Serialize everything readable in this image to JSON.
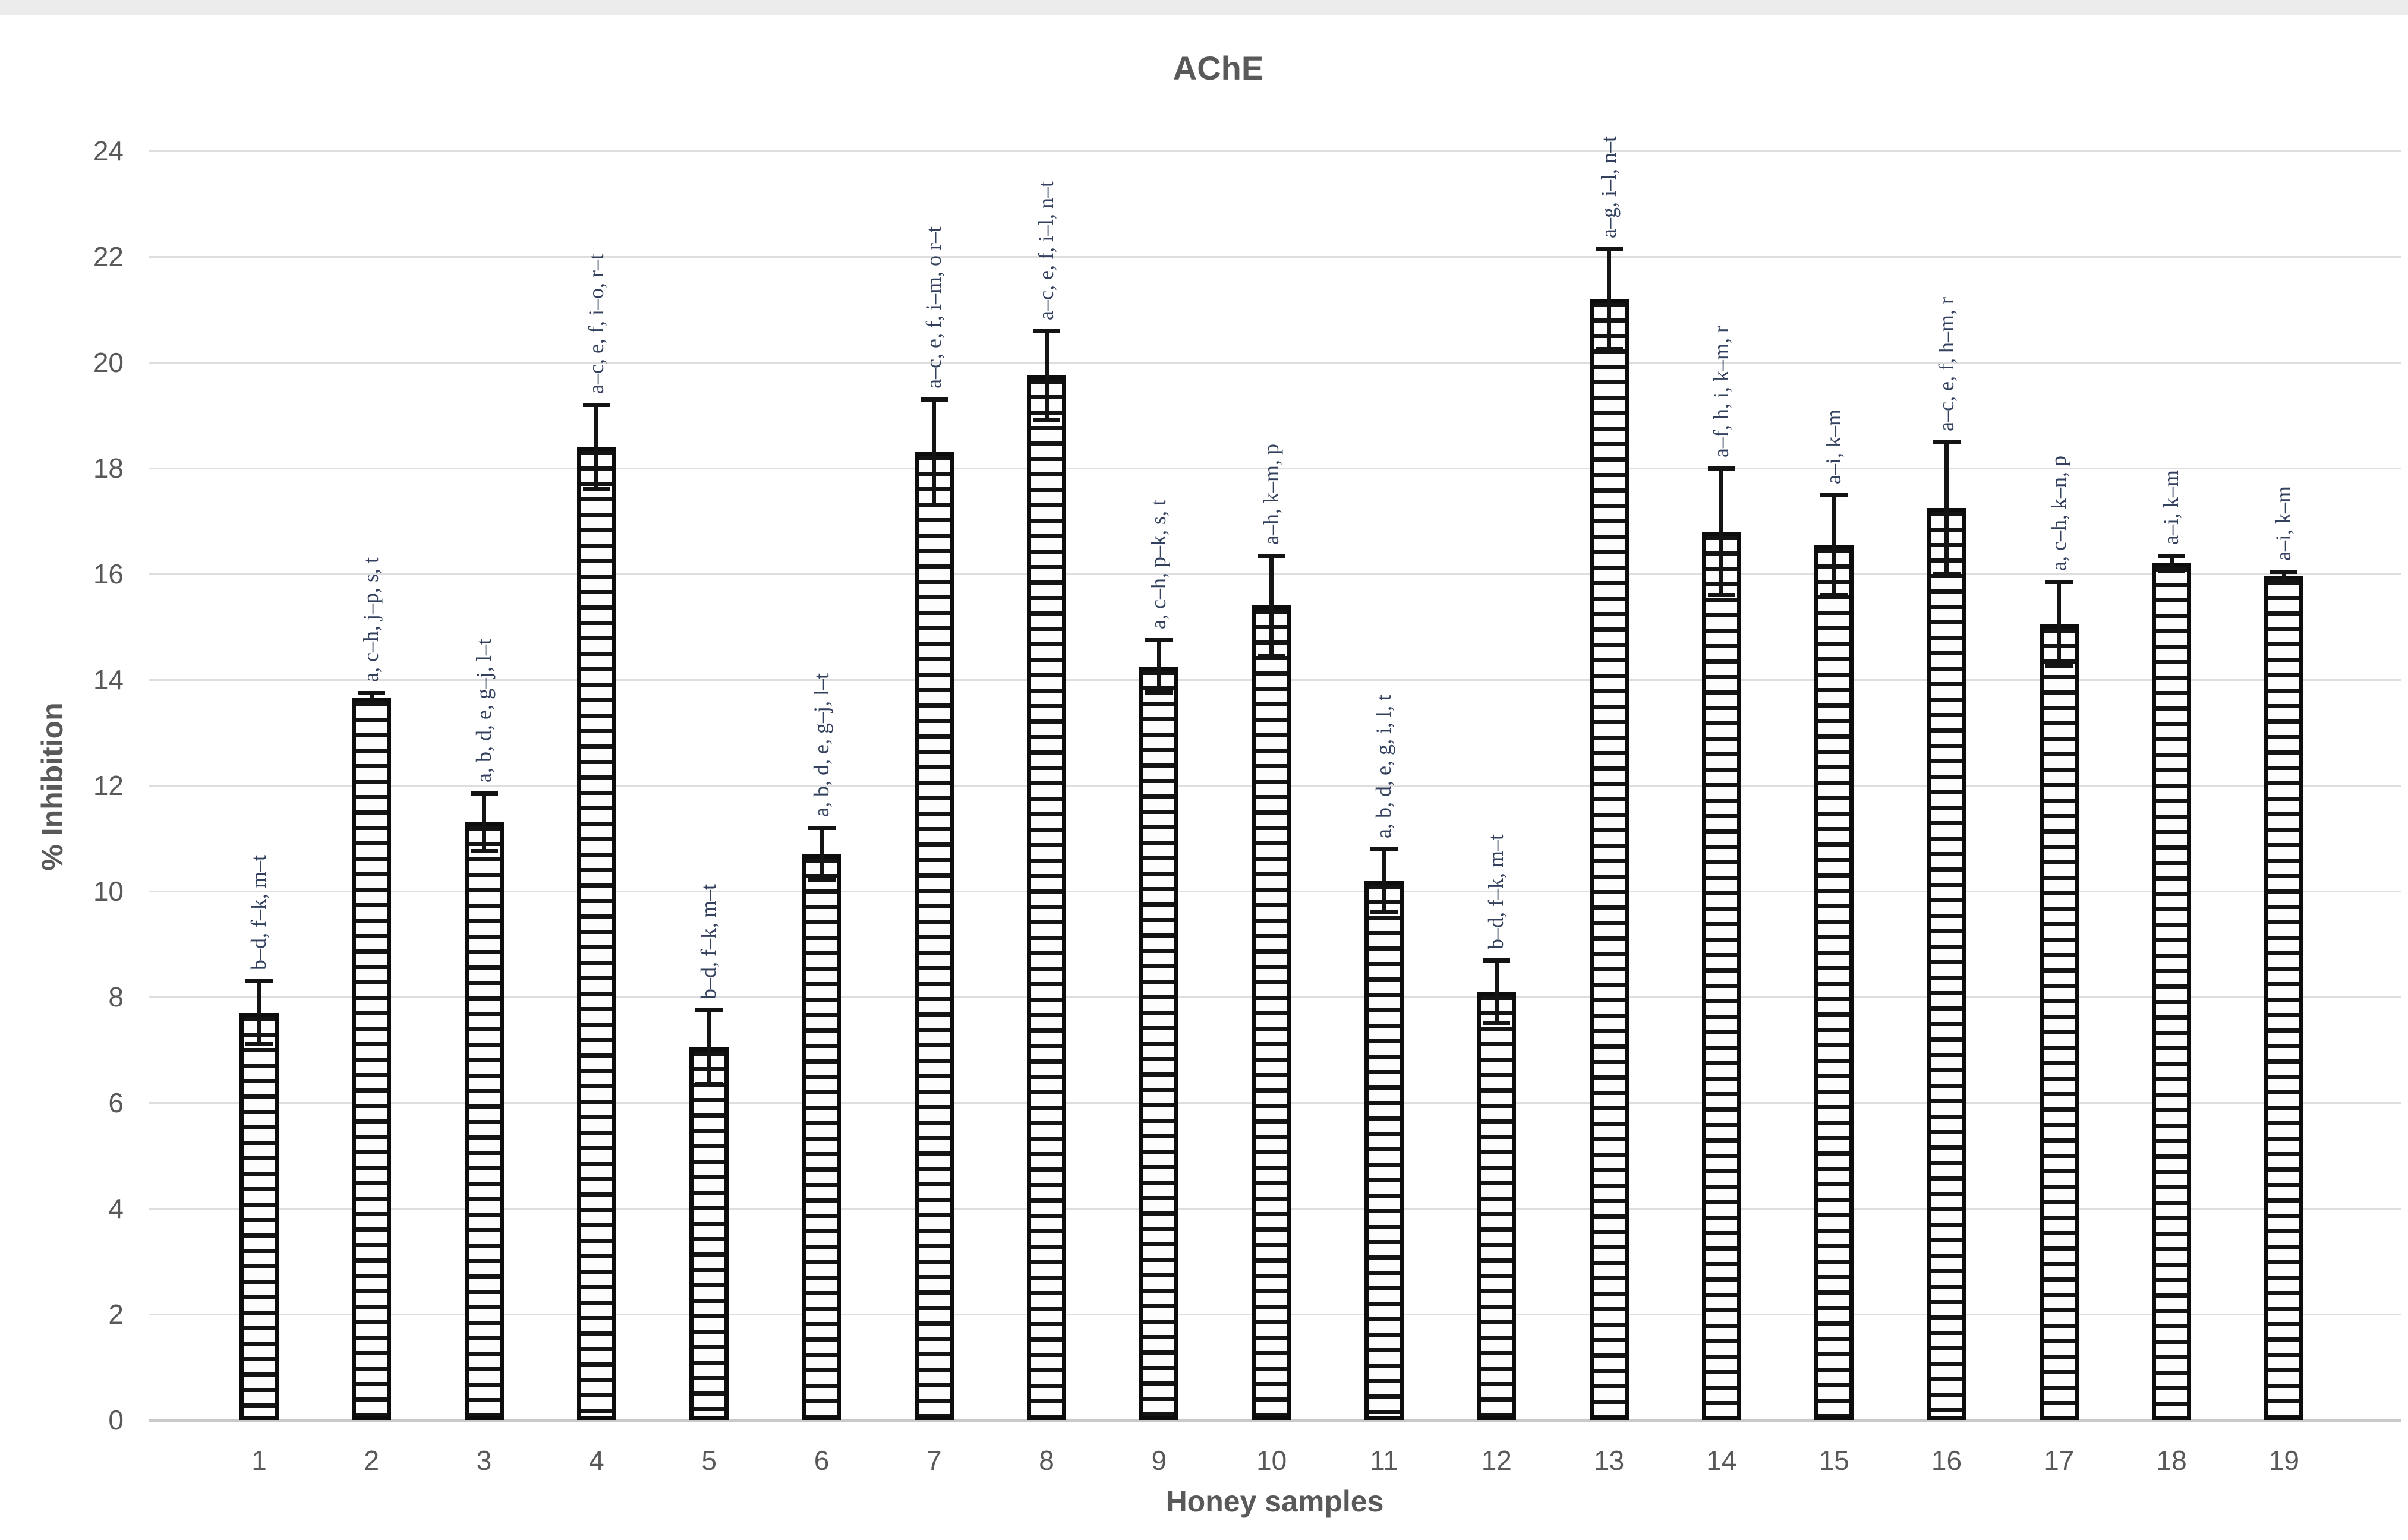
{
  "page": {
    "background": "#ffffff",
    "top_strip_color": "#ececec"
  },
  "chart_data": {
    "type": "bar",
    "title": "AChE",
    "xlabel": "Honey samples",
    "ylabel": "% Inhibition",
    "ylim": [
      0,
      24
    ],
    "ytick_step": 2,
    "yticks": [
      0,
      2,
      4,
      6,
      8,
      10,
      12,
      14,
      16,
      18,
      20,
      22,
      24
    ],
    "grid": true,
    "legend": "none",
    "bar_hatch": "horizontal-stripes",
    "categories": [
      "1",
      "2",
      "3",
      "4",
      "5",
      "6",
      "7",
      "8",
      "9",
      "10",
      "11",
      "12",
      "13",
      "14",
      "15",
      "16",
      "17",
      "18",
      "19"
    ],
    "values": [
      7.7,
      13.65,
      11.3,
      18.4,
      7.05,
      10.7,
      18.3,
      19.75,
      14.25,
      15.4,
      10.2,
      8.1,
      21.2,
      16.8,
      16.55,
      17.25,
      15.05,
      16.2,
      15.95
    ],
    "errors": [
      0.6,
      0.1,
      0.55,
      0.8,
      0.7,
      0.5,
      1.0,
      0.85,
      0.5,
      0.95,
      0.6,
      0.6,
      0.95,
      1.2,
      0.95,
      1.25,
      0.8,
      0.15,
      0.1
    ],
    "significance_labels": [
      "b–d, f–k, m–t",
      "a, c–h, j–p, s, t",
      "a, b, d, e, g–j, l–t",
      "a–c, e, f, i–o, r–t",
      "b–d, f–k, m–t",
      "a, b, d, e, g–j, l–t",
      "a–c, e, f, i–m, o r–t",
      "a–c, e, f, i–l, n–t",
      "a, c–h, p–k, s, t",
      "a–h, k–m, p",
      "a, b, d, e, g, i, l, t",
      "b–d, f–k, m–t",
      "a–g, i–l, n–t",
      "a–f, h, i, k–m, r",
      "a–i, k–m",
      "a–c, e, f, h–m, r",
      "a, c–h, k–n, p",
      "a–i, k–m",
      "a–i, k–m"
    ],
    "colors": {
      "bar_fill": "#fdfdfd",
      "bar_stripe": "#141414",
      "bar_border": "#0d0d0d",
      "error_bar": "#141414",
      "annotation_text": "#33415e",
      "axis_text": "#595959",
      "gridline": "#dedede",
      "zero_line": "#c9c9c9"
    }
  }
}
